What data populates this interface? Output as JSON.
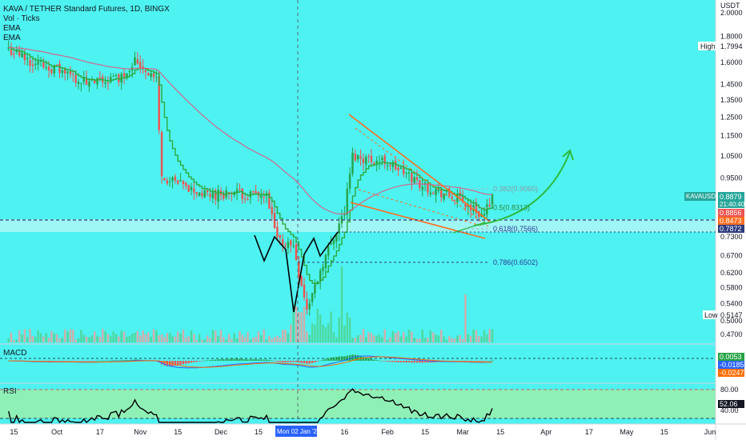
{
  "header": {
    "title": "KAVA / TETHER Standard Futures, 1D, BINGX",
    "indicators": [
      "Vol · Ticks",
      "EMA",
      "EMA"
    ]
  },
  "colors": {
    "background": "#4ef2f0",
    "up": "#26a346",
    "down": "#ef5350",
    "ema_fast": "#2eaa3c",
    "ema_slow": "#d2668e",
    "orange": "#ff6d1f",
    "green_arrow": "#2ebb3e",
    "fib": "#2e7de0",
    "support_band": "#9ff6f4",
    "rsi_band": "#8ff0b6",
    "macd_line": "#2962ff",
    "signal_line": "#ff6d00"
  },
  "y_axis": {
    "unit": "USDT",
    "ticks": [
      "2.0000",
      "1.8000",
      "1.6000",
      "1.4500",
      "1.3500",
      "1.2500",
      "1.1500",
      "1.0500",
      "0.9500",
      "0.8500",
      "0.7300",
      "0.6700",
      "0.6200",
      "0.5800",
      "0.5400",
      "0.5000",
      "0.4700"
    ],
    "high_label": "High",
    "high_value": "1.7994",
    "low_label": "Low",
    "low_value": "0.5147",
    "price_badges": [
      {
        "label": "KAVAUSDT",
        "value": "0.8879",
        "sub": "21:40:40",
        "color": "#26a69a"
      },
      {
        "value": "0.8856",
        "color": "#ef5350"
      },
      {
        "value": "0.8473",
        "color": "#ff6d1f"
      },
      {
        "value": "0.7872",
        "color": "#2e3b7e"
      }
    ]
  },
  "x_axis": {
    "ticks": [
      "15",
      "Oct",
      "17",
      "Nov",
      "15",
      "Dec",
      "15",
      "Jan '23",
      "16",
      "Feb",
      "15",
      "Mar",
      "15",
      "Apr",
      "17",
      "May",
      "15",
      "Jun"
    ],
    "crosshair_label": "Mon 02 Jan '23"
  },
  "fib_levels": [
    {
      "label": "0.382(0.9060)",
      "price": 0.906
    },
    {
      "label": "0.5(0.8313)",
      "price": 0.8313
    },
    {
      "label": "0.618(0.7566)",
      "price": 0.7566
    },
    {
      "label": "0.786(0.6502)",
      "price": 0.6502
    }
  ],
  "macd": {
    "label": "MACD",
    "values": [
      "0.0053",
      "-0.0185",
      "-0.0247"
    ]
  },
  "rsi": {
    "label": "RSI",
    "levels": [
      "80.00",
      "40.00"
    ],
    "value": "52.06"
  },
  "chart_data": {
    "type": "candlestick",
    "title": "KAVA / TETHER Standard Futures, 1D, BINGX",
    "x_range": [
      "2022-09-11",
      "2023-06-01"
    ],
    "y_range": [
      0.45,
      2.12
    ],
    "y_scale": "log",
    "series": [
      {
        "name": "KAVAUSDT",
        "key_points": [
          {
            "x": "2022-09-13",
            "close": 1.7
          },
          {
            "x": "2022-09-20",
            "close": 1.62
          },
          {
            "x": "2022-10-01",
            "close": 1.55
          },
          {
            "x": "2022-10-13",
            "close": 1.45
          },
          {
            "x": "2022-10-25",
            "close": 1.5
          },
          {
            "x": "2022-10-30",
            "close": 1.62
          },
          {
            "x": "2022-11-07",
            "close": 1.48
          },
          {
            "x": "2022-11-09",
            "close": 0.95
          },
          {
            "x": "2022-11-25",
            "close": 0.88
          },
          {
            "x": "2022-12-05",
            "close": 0.89
          },
          {
            "x": "2022-12-18",
            "close": 0.87
          },
          {
            "x": "2022-12-22",
            "close": 0.72
          },
          {
            "x": "2022-12-28",
            "close": 0.7
          },
          {
            "x": "2023-01-02",
            "close": 0.525
          },
          {
            "x": "2023-01-08",
            "close": 0.65
          },
          {
            "x": "2023-01-16",
            "close": 0.82
          },
          {
            "x": "2023-01-19",
            "close": 1.05
          },
          {
            "x": "2023-02-01",
            "close": 1.02
          },
          {
            "x": "2023-02-14",
            "close": 0.92
          },
          {
            "x": "2023-02-28",
            "close": 0.86
          },
          {
            "x": "2023-03-09",
            "close": 0.8
          },
          {
            "x": "2023-03-12",
            "close": 0.8879
          }
        ]
      }
    ]
  }
}
